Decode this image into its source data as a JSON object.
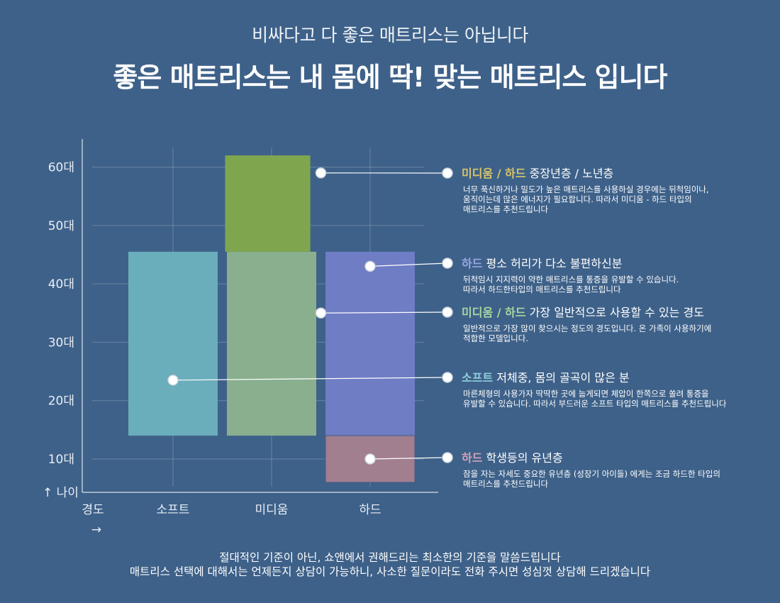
{
  "header": {
    "subtitle": "비싸다고 다 좋은 매트리스는 아닙니다",
    "title": "좋은 매트리스는 내 몸에 딱! 맞는 매트리스 입니다"
  },
  "footer": {
    "line1": "절대적인 기준이 아닌,  쇼앤에서 권해드리는 최소한의 기준을 말씀드립니다",
    "line2": "매트리스 선택에 대해서는 언제든지 상담이 가능하니, 사소한 질문이라도 전화 주시면 성심껏 상담해 드리겠습니다"
  },
  "chart_data": {
    "type": "bar",
    "xlabel": "경도 →",
    "ylabel": "↑ 나이",
    "categories": [
      "소프트",
      "미디움",
      "하드"
    ],
    "y_ticks": [
      10,
      20,
      30,
      40,
      50,
      60
    ],
    "y_tick_suffix": "대",
    "ylim": [
      5,
      65
    ],
    "grid": true,
    "colors": {
      "soft": "#6aadbb",
      "medium": "#8aaf8e",
      "hard": "#6e7dc4",
      "medium_top": "#7fa64e",
      "hard_bottom": "#a17f8f"
    },
    "ranges": [
      {
        "category": "소프트",
        "y_start": 14,
        "y_end": 45.5,
        "color_key": "soft"
      },
      {
        "category": "미디움",
        "y_start": 14,
        "y_end": 45.5,
        "color_key": "medium"
      },
      {
        "category": "미디움",
        "y_start": 45.5,
        "y_end": 62,
        "color_key": "medium_top",
        "x_span": [
          0.5,
          1.4
        ]
      },
      {
        "category": "하드",
        "y_start": 14,
        "y_end": 45.5,
        "color_key": "hard"
      },
      {
        "category": "하드",
        "y_start": 6,
        "y_end": 14,
        "color_key": "hard_bottom"
      }
    ],
    "annotations": [
      {
        "point_x": 1.5,
        "point_y": 59,
        "label": "미디움 / 하드",
        "label_color": "#d8c56a",
        "text": " 중장년층 / 노년층",
        "desc": [
          "너무 푹신하거나 밀도가 높은 매트리스를 사용하실 경우에는 뒤척임이나,",
          "움직이는데 많은 에너지가 필요합니다. 따라서 미디움 - 하드 타입의",
          "매트리스를 추천드립니다"
        ]
      },
      {
        "point_x": 2.0,
        "point_y": 43,
        "label": "하드",
        "label_color": "#9aa6e6",
        "text": " 평소 허리가 다소 불편하신분",
        "desc": [
          "뒤척임시 지지력이 약한 매트리스를 통증을 유발할 수 있습니다.",
          "따라서 하드한타입의 매트리스를 추천드립니다"
        ]
      },
      {
        "point_x": 1.5,
        "point_y": 35,
        "label": "미디움 / 하드",
        "label_color": "#a9d7a0",
        "text": " 가장 일반적으로 사용할 수 있는 경도",
        "desc": [
          "일반적으로 가장 많이 찾으시는 정도의 경도입니다. 온 가족이 사용하기에",
          "적합한 모델입니다."
        ]
      },
      {
        "point_x": 0.0,
        "point_y": 23.5,
        "label": "소프트",
        "label_color": "#8fd0dc",
        "text": " 저체중, 몸의 골곡이 많은 분",
        "desc": [
          "마른체형의 사용가자 딱딱한 곳에 눕게되면 체압이 한쪽으로 쏠려 통증을",
          "유발할 수 있습니다. 따라서 부드러운 소프트 타입의 매트리스를 추천드립니다"
        ]
      },
      {
        "point_x": 2.0,
        "point_y": 10,
        "label": "하드",
        "label_color": "#d4a3b7",
        "text": " 학생등의 유년층",
        "desc": [
          "잠을 자는 자세도 중요한 유년층 (성장기 아이들) 에게는 조금 하드한 타입의",
          "매트리스를 추천드립니다"
        ]
      }
    ]
  }
}
